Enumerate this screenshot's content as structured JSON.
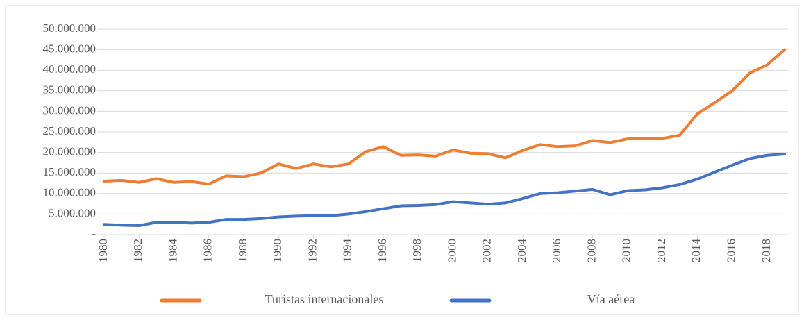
{
  "chart_data": {
    "type": "line",
    "x": [
      1980,
      1981,
      1982,
      1983,
      1984,
      1985,
      1986,
      1987,
      1988,
      1989,
      1990,
      1991,
      1992,
      1993,
      1994,
      1995,
      1996,
      1997,
      1998,
      1999,
      2000,
      2001,
      2002,
      2003,
      2004,
      2005,
      2006,
      2007,
      2008,
      2009,
      2010,
      2011,
      2012,
      2013,
      2014,
      2015,
      2016,
      2017,
      2018,
      2019
    ],
    "xlim": [
      1979.8,
      2019.2
    ],
    "xticks": [
      1980,
      1982,
      1984,
      1986,
      1988,
      1990,
      1992,
      1994,
      1996,
      1998,
      2000,
      2002,
      2004,
      2006,
      2008,
      2010,
      2012,
      2014,
      2016,
      2018
    ],
    "ylim": [
      0,
      50000000
    ],
    "yticks": [
      {
        "value": 0,
        "label": "-"
      },
      {
        "value": 5000000,
        "label": "5.000.000"
      },
      {
        "value": 10000000,
        "label": "10.000.000"
      },
      {
        "value": 15000000,
        "label": "15.000.000"
      },
      {
        "value": 20000000,
        "label": "20.000.000"
      },
      {
        "value": 25000000,
        "label": "25.000.000"
      },
      {
        "value": 30000000,
        "label": "30.000.000"
      },
      {
        "value": 35000000,
        "label": "35.000.000"
      },
      {
        "value": 40000000,
        "label": "40.000.000"
      },
      {
        "value": 45000000,
        "label": "45.000.000"
      },
      {
        "value": 50000000,
        "label": "50.000.000"
      }
    ],
    "grid": true,
    "legend": "bottom",
    "series": [
      {
        "name": "Turistas internacionales",
        "color": "#ed7d31",
        "values": [
          13000000,
          13200000,
          12700000,
          13600000,
          12700000,
          12900000,
          12300000,
          14300000,
          14100000,
          15000000,
          17200000,
          16100000,
          17200000,
          16500000,
          17200000,
          20200000,
          21400000,
          19300000,
          19400000,
          19100000,
          20600000,
          19800000,
          19700000,
          18700000,
          20500000,
          21900000,
          21400000,
          21600000,
          22900000,
          22400000,
          23300000,
          23400000,
          23400000,
          24200000,
          29400000,
          32100000,
          35000000,
          39300000,
          41300000,
          45000000
        ]
      },
      {
        "name": "Vía aérea",
        "color": "#4472c4",
        "values": [
          2500000,
          2300000,
          2200000,
          3000000,
          3000000,
          2800000,
          3000000,
          3700000,
          3700000,
          3900000,
          4300000,
          4500000,
          4600000,
          4600000,
          5000000,
          5600000,
          6300000,
          7000000,
          7100000,
          7300000,
          8000000,
          7700000,
          7400000,
          7700000,
          8800000,
          10000000,
          10200000,
          10600000,
          11000000,
          9700000,
          10700000,
          10900000,
          11400000,
          12200000,
          13500000,
          15200000,
          16900000,
          18500000,
          19300000,
          19600000
        ]
      }
    ]
  }
}
